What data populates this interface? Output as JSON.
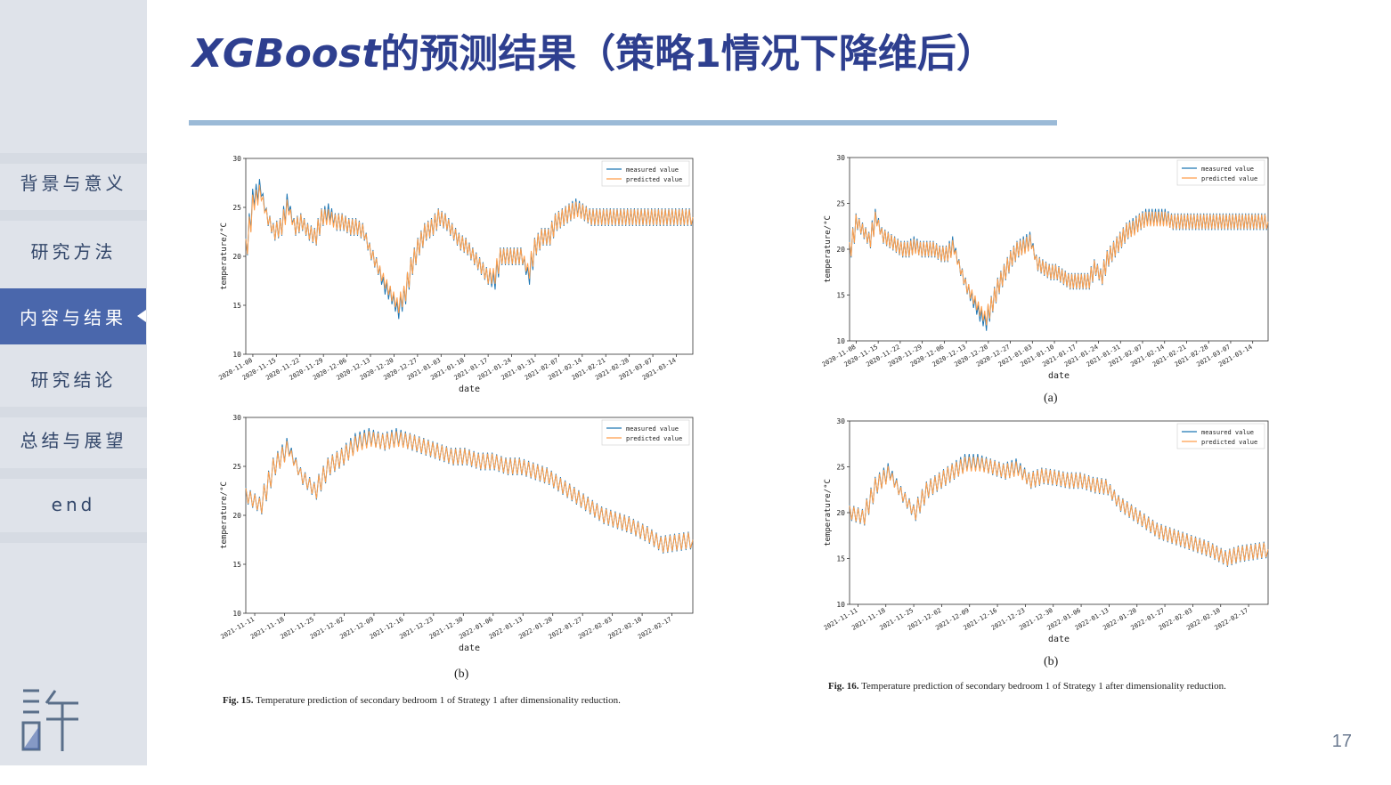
{
  "slide": {
    "title_prefix": "XGBoost",
    "title_rest": "的预测结果（策略1情况下降维后）",
    "page_number": "17"
  },
  "sidebar": {
    "items": [
      {
        "label": "背景与意义",
        "active": false
      },
      {
        "label": "研究方法",
        "active": false
      },
      {
        "label": "内容与结果",
        "active": true
      },
      {
        "label": "研究结论",
        "active": false
      },
      {
        "label": "总结与展望",
        "active": false
      },
      {
        "label": "end",
        "active": false
      }
    ]
  },
  "colors": {
    "measured": "#1f77b4",
    "predicted": "#ff9e4a",
    "accent": "#4a67ac",
    "title": "#2e3f8f"
  },
  "figures": {
    "fig15": {
      "caption_label": "Fig. 15.",
      "caption_text": "Temperature prediction of secondary bedroom 1 of Strategy 1 after dimensionality reduction.",
      "panel_b_label": "(b)"
    },
    "fig16": {
      "caption_label": "Fig. 16.",
      "caption_text": "Temperature prediction of secondary bedroom 1 of Strategy 1 after dimensionality reduction.",
      "panel_a_label": "(a)",
      "panel_b_label": "(b)"
    }
  },
  "chart_data": [
    {
      "id": "fig15-top",
      "type": "line",
      "xlabel": "date",
      "ylabel": "temperature/°C",
      "ylim": [
        10,
        30
      ],
      "yticks": [
        10,
        15,
        20,
        25,
        30
      ],
      "xticks": [
        "2020-11-08",
        "2020-11-15",
        "2020-11-22",
        "2020-11-29",
        "2020-12-06",
        "2020-12-13",
        "2020-12-20",
        "2020-12-27",
        "2021-01-03",
        "2021-01-10",
        "2021-01-17",
        "2021-01-24",
        "2021-01-31",
        "2021-02-07",
        "2021-02-14",
        "2021-02-21",
        "2021-02-28",
        "2021-03-07",
        "2021-03-14"
      ],
      "legend": [
        "measured value",
        "predicted value"
      ],
      "legend_position": "top-right",
      "x_days": [
        0,
        2,
        4,
        6,
        8,
        10,
        12,
        14,
        16,
        18,
        20,
        22,
        24,
        26,
        28,
        30,
        32,
        34,
        36,
        38,
        40,
        42,
        44,
        46,
        48,
        50,
        52,
        54,
        56,
        58,
        60,
        62,
        64,
        66,
        68,
        70,
        72,
        74,
        76,
        78,
        80,
        82,
        84,
        86,
        88,
        90,
        92,
        94,
        96,
        98,
        100,
        102,
        104,
        126,
        130
      ],
      "measured": [
        21,
        26,
        27,
        24,
        22.5,
        23,
        25.5,
        23,
        23.5,
        22.5,
        22,
        24,
        24.5,
        23.5,
        23.5,
        23,
        23,
        22.5,
        20.5,
        19,
        17,
        16,
        14.5,
        16,
        19,
        21,
        22.5,
        23,
        24,
        23.5,
        22.5,
        21.5,
        21,
        20,
        19,
        18,
        17.5,
        20,
        20,
        20,
        20,
        18,
        21,
        22,
        22,
        23.5,
        24,
        24.5,
        25,
        24.5,
        24,
        24,
        24,
        24,
        24
      ],
      "predicted": [
        21,
        25.5,
        26.5,
        24,
        22.5,
        23,
        25,
        23,
        23.5,
        22.5,
        22,
        24,
        24,
        23.5,
        23.5,
        23,
        23,
        22.5,
        20.5,
        19,
        17.5,
        16.2,
        15,
        16.2,
        19,
        21,
        22.5,
        23,
        24,
        23.5,
        22.5,
        21.5,
        21,
        20,
        19,
        18,
        18,
        20,
        20,
        20,
        20,
        18.5,
        21,
        22,
        22,
        23.5,
        24,
        24.5,
        24.8,
        24.5,
        24,
        24,
        24,
        24,
        24
      ]
    },
    {
      "id": "fig15-b",
      "type": "line",
      "xlabel": "date",
      "ylabel": "temperature/°C",
      "ylim": [
        10,
        30
      ],
      "yticks": [
        10,
        15,
        20,
        25,
        30
      ],
      "xticks": [
        "2021-11-11",
        "2021-11-18",
        "2021-11-25",
        "2021-12-02",
        "2021-12-09",
        "2021-12-16",
        "2021-12-23",
        "2021-12-30",
        "2022-01-06",
        "2022-01-13",
        "2022-01-20",
        "2022-01-27",
        "2022-02-03",
        "2022-02-10",
        "2022-02-17"
      ],
      "legend": [
        "measured value",
        "predicted value"
      ],
      "legend_position": "top-right",
      "x_days": [
        0,
        3,
        6,
        9,
        12,
        15,
        18,
        21,
        24,
        27,
        30,
        33,
        36,
        39,
        42,
        45,
        48,
        51,
        54,
        57,
        60,
        63,
        66,
        69,
        72,
        75,
        78,
        81,
        84,
        88,
        91,
        98
      ],
      "measured": [
        22,
        21,
        25,
        27,
        24,
        22.5,
        25,
        26,
        27.5,
        28,
        27.5,
        28,
        27.5,
        27,
        26.5,
        26,
        26,
        25.5,
        25.5,
        25,
        25,
        24.5,
        24,
        23,
        22,
        21,
        20,
        19.5,
        19,
        18,
        17,
        17.5
      ],
      "predicted": [
        22,
        21,
        25,
        26.8,
        24,
        22.5,
        25,
        26,
        27.3,
        27.8,
        27.5,
        27.8,
        27.5,
        27,
        26.5,
        26,
        26,
        25.5,
        25.5,
        25,
        25,
        24.5,
        24,
        23,
        22,
        21,
        20,
        19.5,
        19,
        18,
        17,
        17.5
      ]
    },
    {
      "id": "fig16-a",
      "type": "line",
      "xlabel": "date",
      "ylabel": "temperature/°C",
      "ylim": [
        10,
        30
      ],
      "yticks": [
        10,
        15,
        20,
        25,
        30
      ],
      "xticks": [
        "2020-11-08",
        "2020-11-15",
        "2020-11-22",
        "2020-11-29",
        "2020-12-06",
        "2020-12-13",
        "2020-12-20",
        "2020-12-27",
        "2021-01-03",
        "2021-01-10",
        "2021-01-17",
        "2021-01-24",
        "2021-01-31",
        "2021-02-07",
        "2021-02-14",
        "2021-02-21",
        "2021-02-28",
        "2021-03-07",
        "2021-03-14"
      ],
      "legend": [
        "measured value",
        "predicted value"
      ],
      "legend_position": "top-right",
      "x_days": [
        0,
        2,
        4,
        6,
        8,
        10,
        12,
        14,
        16,
        18,
        20,
        22,
        24,
        26,
        28,
        30,
        32,
        34,
        36,
        38,
        40,
        42,
        44,
        46,
        48,
        50,
        52,
        54,
        56,
        58,
        60,
        62,
        64,
        66,
        68,
        70,
        72,
        74,
        76,
        78,
        80,
        82,
        84,
        86,
        88,
        90,
        92,
        94,
        96,
        98,
        100,
        102,
        104,
        126,
        130
      ],
      "measured": [
        20,
        23,
        22,
        21,
        23.5,
        21.5,
        21,
        20.5,
        20,
        20,
        20.5,
        20,
        20,
        20,
        19.5,
        19.5,
        20.5,
        18,
        16,
        14.5,
        13,
        12,
        14,
        16,
        17.5,
        19,
        20,
        20.5,
        21,
        18.5,
        18,
        17.5,
        17.5,
        17,
        16.5,
        16.5,
        16.5,
        16.5,
        18,
        17,
        19,
        20,
        21,
        22,
        22.5,
        23,
        23.5,
        23.5,
        23.5,
        23.5,
        23,
        23,
        23,
        23,
        23
      ],
      "predicted": [
        20,
        23,
        22,
        21,
        23.3,
        21.5,
        21,
        20.5,
        20,
        20,
        20.3,
        20,
        20,
        20,
        19.5,
        19.5,
        20.2,
        18,
        16,
        14.8,
        13.5,
        12.5,
        14,
        16,
        17.5,
        19,
        20,
        20.3,
        20.8,
        18.5,
        18,
        17.5,
        17.5,
        17,
        16.5,
        16.5,
        16.5,
        16.5,
        18,
        17,
        19,
        20,
        21,
        22,
        22.3,
        23,
        23.3,
        23.3,
        23.3,
        23.3,
        23,
        23,
        23,
        23,
        23
      ]
    },
    {
      "id": "fig16-b",
      "type": "line",
      "xlabel": "date",
      "ylabel": "temperature/°C",
      "ylim": [
        10,
        30
      ],
      "yticks": [
        10,
        15,
        20,
        25,
        30
      ],
      "xticks": [
        "2021-11-11",
        "2021-11-18",
        "2021-11-25",
        "2021-12-02",
        "2021-12-09",
        "2021-12-16",
        "2021-12-23",
        "2021-12-30",
        "2022-01-06",
        "2022-01-13",
        "2022-01-20",
        "2022-01-27",
        "2022-02-03",
        "2022-02-10",
        "2022-02-17"
      ],
      "legend": [
        "measured value",
        "predicted value"
      ],
      "legend_position": "top-right",
      "x_days": [
        0,
        3,
        6,
        9,
        12,
        15,
        18,
        21,
        24,
        27,
        30,
        33,
        36,
        39,
        42,
        45,
        48,
        51,
        54,
        57,
        60,
        63,
        66,
        69,
        72,
        75,
        78,
        81,
        84,
        88,
        91,
        98
      ],
      "measured": [
        20,
        19.5,
        23,
        24.5,
        22,
        20,
        22.5,
        23.5,
        24.5,
        25.5,
        25.5,
        25,
        24.5,
        25,
        23.5,
        24,
        23.8,
        23.5,
        23.5,
        23,
        22.8,
        21,
        20,
        19,
        18,
        17.5,
        17,
        16.5,
        16,
        15,
        15.5,
        16
      ],
      "predicted": [
        20,
        19.5,
        23,
        24.3,
        22,
        20,
        22.5,
        23.5,
        24.5,
        25.3,
        25.3,
        25,
        24.5,
        24.8,
        23.5,
        24,
        23.8,
        23.5,
        23.5,
        23,
        22.8,
        21,
        20,
        19,
        18,
        17.5,
        17,
        16.5,
        16,
        15,
        15.5,
        16
      ]
    }
  ]
}
